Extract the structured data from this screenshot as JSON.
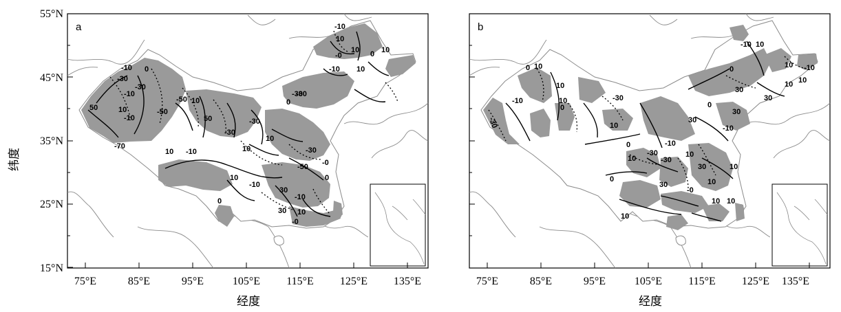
{
  "y_axis_title": "纬度",
  "panels": [
    {
      "label": "a",
      "x_ticks": [
        "75°E",
        "85°E",
        "95°E",
        "105°E",
        "115°E",
        "125°E",
        "135°E"
      ],
      "y_ticks": [
        "55°N",
        "45°N",
        "35°N",
        "25°N",
        "15°N"
      ],
      "x_title": "经度",
      "contour_labels": [
        "-10",
        "10",
        "10",
        "-0",
        "10",
        "0",
        "-10",
        "10",
        "-30",
        "0",
        "-10",
        "-30",
        "10",
        "-50",
        "-50",
        "-10",
        "-30",
        "-10",
        "10",
        "-70",
        "50",
        "10",
        "-10",
        "50",
        "-30",
        "-30",
        "10",
        "0",
        "-30",
        "10",
        "-30",
        "-50",
        "10",
        "30",
        "-0",
        "0",
        "-10",
        "30",
        "10",
        "-10",
        "-0",
        "0"
      ]
    },
    {
      "label": "b",
      "x_ticks": [
        "75°E",
        "85°E",
        "95°E",
        "105°E",
        "115°E",
        "125°E",
        "135°E"
      ],
      "x_title": "经度",
      "contour_labels": [
        "-30",
        "0",
        "10",
        "-10",
        "10",
        "10",
        "0",
        "-30",
        "10",
        "-10",
        "10",
        "0",
        "10",
        "30",
        "30",
        "10",
        "30",
        "-10",
        "0",
        "10",
        "30",
        "-10",
        "-30",
        "-10",
        "10",
        "30",
        "30",
        "-0",
        "10",
        "10",
        "10",
        "0",
        "10",
        "0",
        "10",
        "-30",
        "10"
      ]
    }
  ],
  "colors": {
    "shade": "#9a9a9a",
    "land_boundary": "#8a8a8a",
    "contour": "#000000"
  }
}
